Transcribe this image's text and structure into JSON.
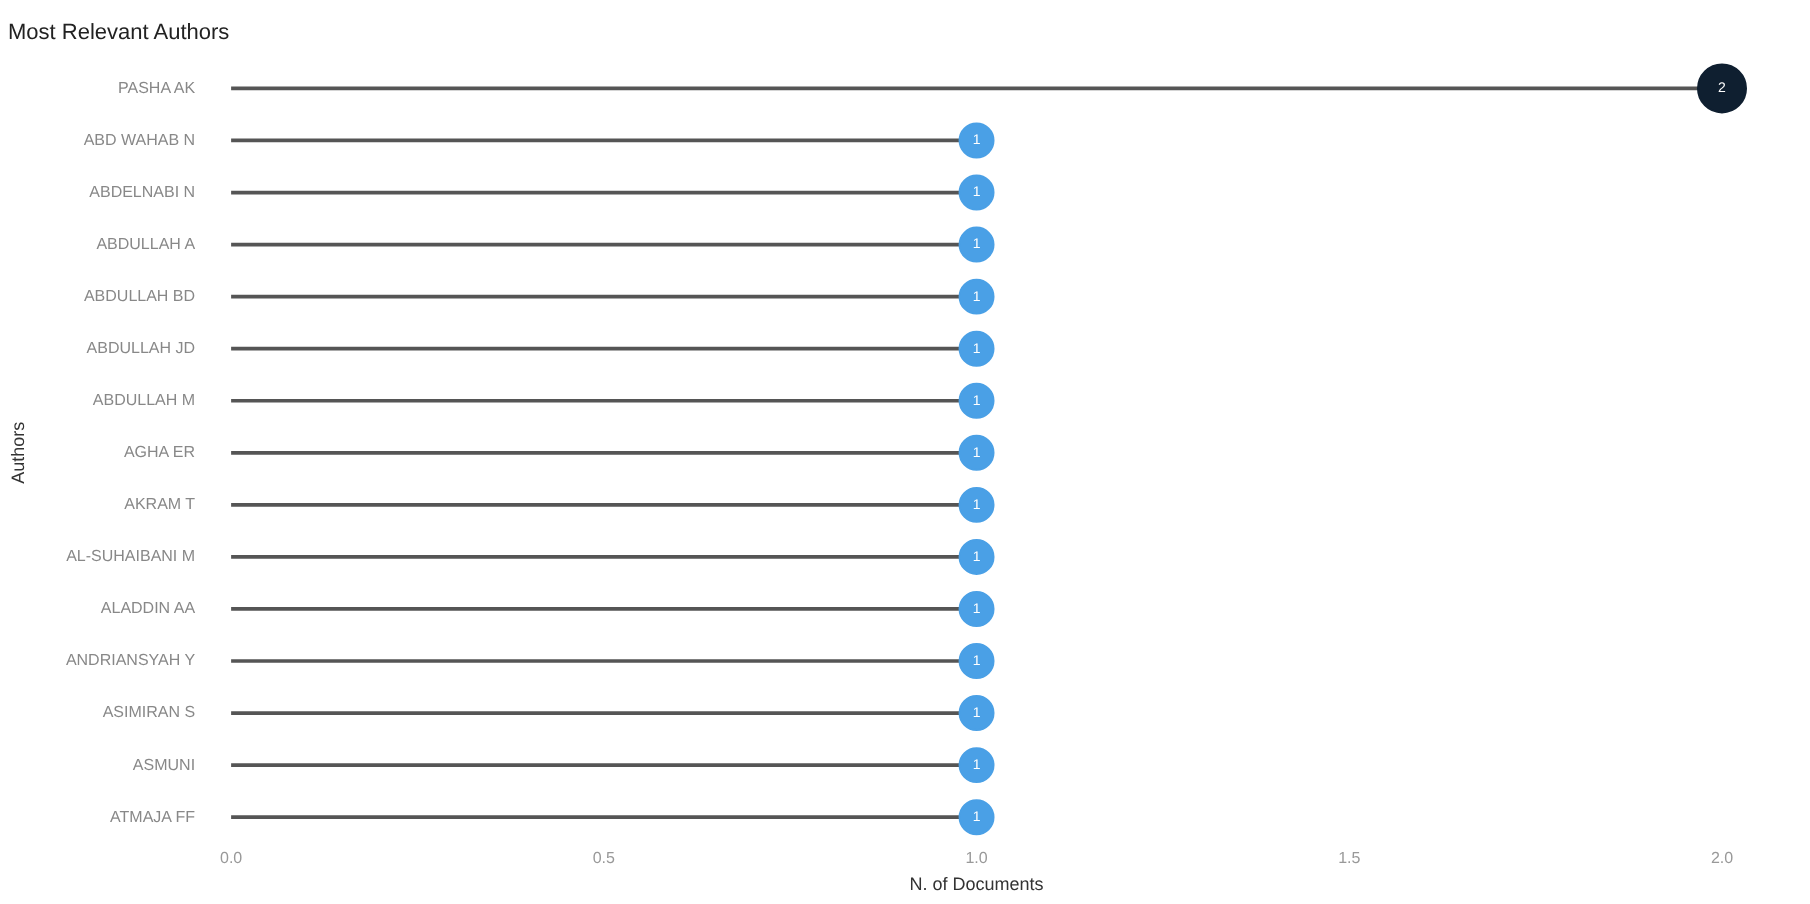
{
  "chart_data": {
    "type": "lollipop",
    "orientation": "horizontal",
    "title": "Most Relevant Authors",
    "xlabel": "N. of Documents",
    "ylabel": "Authors",
    "categories": [
      "PASHA AK",
      "ABD WAHAB N",
      "ABDELNABI N",
      "ABDULLAH A",
      "ABDULLAH BD",
      "ABDULLAH JD",
      "ABDULLAH M",
      "AGHA ER",
      "AKRAM T",
      "AL-SUHAIBANI M",
      "ALADDIN AA",
      "ANDRIANSYAH Y",
      "ASIMIRAN S",
      "ASMUNI",
      "ATMAJA FF"
    ],
    "values": [
      2,
      1,
      1,
      1,
      1,
      1,
      1,
      1,
      1,
      1,
      1,
      1,
      1,
      1,
      1
    ],
    "sizes": [
      1,
      0.5,
      0.5,
      0.5,
      0.5,
      0.5,
      0.5,
      0.5,
      0.5,
      0.5,
      0.5,
      0.5,
      0.5,
      0.5,
      0.5
    ],
    "colors": [
      "#0f1f30",
      "#4aa0e6",
      "#4aa0e6",
      "#4aa0e6",
      "#4aa0e6",
      "#4aa0e6",
      "#4aa0e6",
      "#4aa0e6",
      "#4aa0e6",
      "#4aa0e6",
      "#4aa0e6",
      "#4aa0e6",
      "#4aa0e6",
      "#4aa0e6",
      "#4aa0e6"
    ],
    "xlim": [
      0,
      2
    ],
    "xticks": [
      {
        "value": 0,
        "label": "0.0"
      },
      {
        "value": 0.5,
        "label": "0.5"
      },
      {
        "value": 1,
        "label": "1.0"
      },
      {
        "value": 1.5,
        "label": "1.5"
      },
      {
        "value": 2,
        "label": "2.0"
      }
    ],
    "data_labels": true,
    "grid": false,
    "legend": false
  }
}
